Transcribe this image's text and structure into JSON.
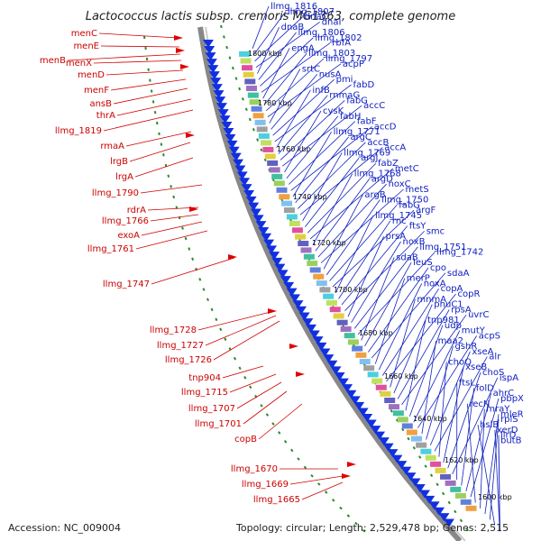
{
  "title": "Lactococcus lactis subsp. cremoris MG1363, complete genome",
  "accession": "Accession: NC_009004",
  "topology": "Topology: circular; Length: 2,529,478 bp; Genes: 2,515",
  "kbp_labels": [
    "1800 kbp",
    "1780 kbp",
    "1760 kbp",
    "1740 kbp",
    "1720 kbp",
    "1700 kbp",
    "1680 kbp",
    "1660 kbp",
    "1640 kbp",
    "1620 kbp",
    "1600 kbp"
  ],
  "left_labels": [
    "menC",
    "menE",
    "menB",
    "menX",
    "menD",
    "menF",
    "ansB",
    "thrA",
    "llmg_1819",
    "rmaA",
    "lrgB",
    "lrgA",
    "llmg_1790",
    "rdrA",
    "llmg_1766",
    "exoA",
    "llmg_1761",
    "llmg_1747",
    "llmg_1728",
    "llmg_1727",
    "llmg_1726",
    "tnp904",
    "llmg_1715",
    "llmg_1707",
    "llmg_1701",
    "copB",
    "llmg_1670",
    "llmg_1669",
    "llmg_1665"
  ],
  "right_labels": [
    "llmg_1816",
    "llmg_1807",
    "dnaC",
    "dnaI",
    "dnaB",
    "llmg_1806",
    "llmg_1802",
    "rbfA",
    "engA",
    "llmg_1803",
    "llmg_1797",
    "acpP",
    "srtC",
    "nusA",
    "pmi",
    "fabD",
    "infB",
    "rnmaG",
    "fabG",
    "accC",
    "cysK",
    "fabH",
    "fabF",
    "accD",
    "llmg_1771",
    "argC",
    "accB",
    "accA",
    "llmg_1769",
    "argJ",
    "fabZ",
    "metC",
    "llmg_1768",
    "argD",
    "noxC",
    "metS",
    "argB",
    "llmg_1750",
    "fabG",
    "argF",
    "llmg_1745",
    "rnc",
    "ftsY",
    "smc",
    "prsA",
    "noxB",
    "llmg_1751",
    "llmg_1742",
    "sdaB",
    "leuS",
    "cpo",
    "sdaA",
    "merP",
    "noxA",
    "copA",
    "copR",
    "mnmA",
    "pnuC1",
    "rpsA",
    "uvrC",
    "tnp981",
    "udp",
    "mutY",
    "acpS",
    "maa2",
    "gshR",
    "xseA",
    "alr",
    "choQ",
    "xseB",
    "choS",
    "ispA",
    "ftsL",
    "folD",
    "ahrC",
    "pbpX",
    "recN",
    "mraY",
    "mleR",
    "rplS",
    "hslB",
    "xerD",
    "llrD",
    "butB"
  ]
}
